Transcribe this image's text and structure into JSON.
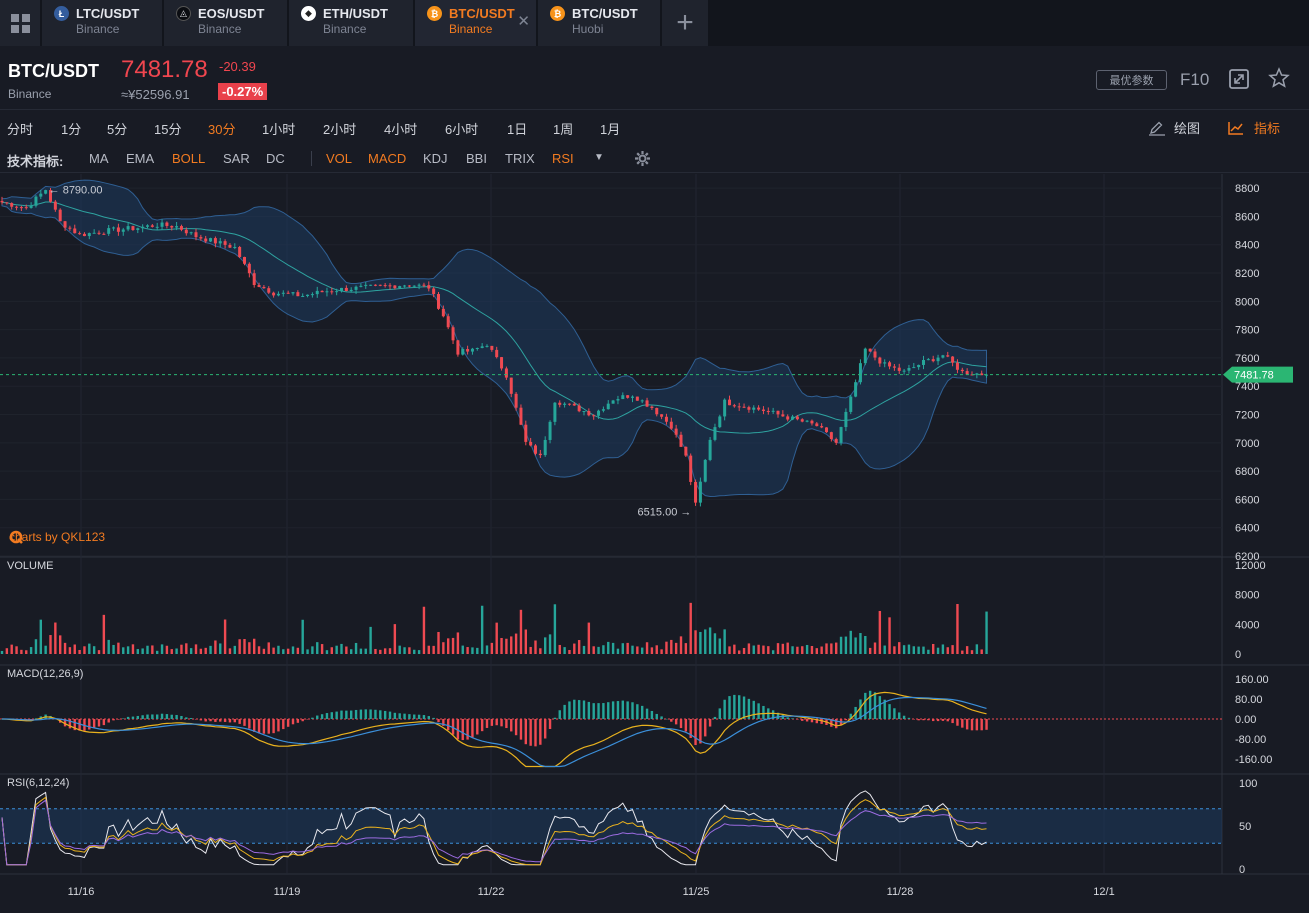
{
  "tabs": [
    {
      "pair": "LTC/USDT",
      "exchange": "Binance",
      "coin_icon": "ltc-icon",
      "coin_color": "#345d9d",
      "coin_glyph": "Ł",
      "active": false
    },
    {
      "pair": "EOS/USDT",
      "exchange": "Binance",
      "coin_icon": "eos-icon",
      "coin_color": "#000000",
      "coin_glyph": "◬",
      "active": false
    },
    {
      "pair": "ETH/USDT",
      "exchange": "Binance",
      "coin_icon": "eth-icon",
      "coin_color": "#ffffff",
      "coin_glyph": "◆",
      "active": false
    },
    {
      "pair": "BTC/USDT",
      "exchange": "Binance",
      "coin_icon": "btc-icon",
      "coin_color": "#f7931a",
      "coin_glyph": "₿",
      "active": true
    },
    {
      "pair": "BTC/USDT",
      "exchange": "Huobi",
      "coin_icon": "btc-icon",
      "coin_color": "#f7931a",
      "coin_glyph": "₿",
      "active": false
    }
  ],
  "header": {
    "symbol": "BTC/USDT",
    "exchange": "Binance",
    "price": "7481.78",
    "change": "-20.39",
    "cny_price": "≈¥52596.91",
    "change_pct": "-0.27%",
    "best_params_label": "最优参数",
    "f10_label": "F10"
  },
  "intervals": [
    "分时",
    "1分",
    "5分",
    "15分",
    "30分",
    "1小时",
    "2小时",
    "4小时",
    "6小时",
    "1日",
    "1周",
    "1月"
  ],
  "active_interval": "30分",
  "draw_label": "绘图",
  "indicator_label": "指标",
  "indicators": {
    "title": "技术指标:",
    "main": [
      {
        "name": "MA",
        "on": false
      },
      {
        "name": "EMA",
        "on": false
      },
      {
        "name": "BOLL",
        "on": true
      },
      {
        "name": "SAR",
        "on": false
      },
      {
        "name": "DC",
        "on": false
      }
    ],
    "sub": [
      {
        "name": "VOL",
        "on": true
      },
      {
        "name": "MACD",
        "on": true
      },
      {
        "name": "KDJ",
        "on": false
      },
      {
        "name": "BBI",
        "on": false
      },
      {
        "name": "TRIX",
        "on": false
      },
      {
        "name": "RSI",
        "on": true
      }
    ]
  },
  "colors": {
    "up": "#26a69a",
    "down": "#ef4a52",
    "accent": "#f27b21",
    "last_price": "#2bb673"
  },
  "brand": "charts by QKL123",
  "chart_data": [
    {
      "type": "candlestick",
      "pane": "price",
      "indicator": "BOLL",
      "ylim": [
        6200,
        8900
      ],
      "yticks": [
        "8800",
        "8600",
        "8400",
        "8200",
        "8000",
        "7800",
        "7600",
        "7400",
        "7200",
        "7000",
        "6800",
        "6600",
        "6400",
        "6200"
      ],
      "last_price": 7481.78,
      "last_price_label": "7481.78",
      "high_marker": {
        "value": 8790.0,
        "label": "8790.00"
      },
      "low_marker": {
        "value": 6515.0,
        "label": "6515.00"
      },
      "keypoints": [
        [
          0,
          8700
        ],
        [
          5,
          8660
        ],
        [
          9,
          8790
        ],
        [
          12,
          8560
        ],
        [
          16,
          8470
        ],
        [
          22,
          8500
        ],
        [
          28,
          8520
        ],
        [
          32,
          8540
        ],
        [
          36,
          8530
        ],
        [
          40,
          8460
        ],
        [
          44,
          8420
        ],
        [
          48,
          8380
        ],
        [
          52,
          8130
        ],
        [
          56,
          8060
        ],
        [
          62,
          8040
        ],
        [
          68,
          8080
        ],
        [
          72,
          8090
        ],
        [
          76,
          8100
        ],
        [
          80,
          8110
        ],
        [
          84,
          8120
        ],
        [
          88,
          8100
        ],
        [
          91,
          7900
        ],
        [
          94,
          7640
        ],
        [
          97,
          7650
        ],
        [
          100,
          7700
        ],
        [
          104,
          7480
        ],
        [
          108,
          7000
        ],
        [
          111,
          6900
        ],
        [
          114,
          7300
        ],
        [
          118,
          7250
        ],
        [
          122,
          7200
        ],
        [
          126,
          7310
        ],
        [
          130,
          7340
        ],
        [
          134,
          7250
        ],
        [
          138,
          7120
        ],
        [
          141,
          6900
        ],
        [
          143,
          6560
        ],
        [
          146,
          7030
        ],
        [
          149,
          7290
        ],
        [
          153,
          7260
        ],
        [
          157,
          7230
        ],
        [
          160,
          7200
        ],
        [
          164,
          7160
        ],
        [
          168,
          7120
        ],
        [
          172,
          7000
        ],
        [
          175,
          7310
        ],
        [
          178,
          7660
        ],
        [
          182,
          7550
        ],
        [
          186,
          7500
        ],
        [
          190,
          7570
        ],
        [
          194,
          7620
        ],
        [
          198,
          7500
        ],
        [
          203,
          7482
        ]
      ]
    },
    {
      "type": "bar",
      "pane": "volume",
      "title": "VOLUME",
      "ylim": [
        0,
        12000
      ],
      "yticks": [
        "12000",
        "8000",
        "4000",
        "0"
      ]
    },
    {
      "type": "line",
      "pane": "macd",
      "title": "MACD(12,26,9)",
      "ylim": [
        -200,
        200
      ],
      "yticks": [
        "160.00",
        "80.00",
        "0.00",
        "-80.00",
        "-160.00"
      ]
    },
    {
      "type": "line",
      "pane": "rsi",
      "title": "RSI(6,12,24)",
      "ylim": [
        0,
        100
      ],
      "yticks": [
        "100",
        "50",
        "0"
      ],
      "band": [
        30,
        70
      ]
    }
  ],
  "x_axis": {
    "labels": [
      "11/16",
      "11/19",
      "11/22",
      "11/25",
      "11/28",
      "12/1"
    ]
  }
}
